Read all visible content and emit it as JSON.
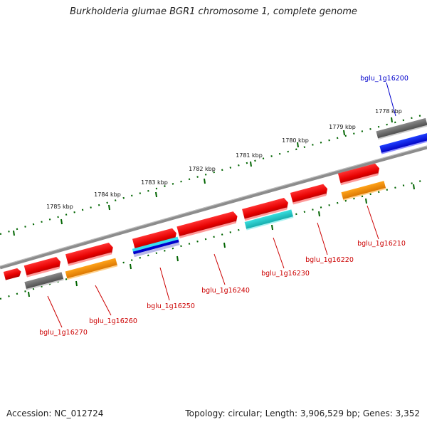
{
  "title": "Burkholderia glumae BGR1 chromosome 1, complete genome",
  "footer": {
    "accession": "Accession: NC_012724",
    "summary": "Topology: circular; Length: 3,906,529 bp; Genes: 3,352"
  },
  "colors": {
    "backbone": "#808080",
    "tick": "#006400",
    "label_red": "#cc0000",
    "label_blue": "#0000cc"
  },
  "scale_ticks": [
    {
      "label": "1778 kbp"
    },
    {
      "label": "1779 kbp"
    },
    {
      "label": "1780 kbp"
    },
    {
      "label": "1781 kbp"
    },
    {
      "label": "1782 kbp"
    },
    {
      "label": "1783 kbp"
    },
    {
      "label": "1784 kbp"
    },
    {
      "label": "1785 kbp"
    }
  ],
  "gene_labels": [
    {
      "text": "bglu_1g16200",
      "color": "#0000cc"
    },
    {
      "text": "bglu_1g16210",
      "color": "#cc0000"
    },
    {
      "text": "bglu_1g16220",
      "color": "#cc0000"
    },
    {
      "text": "bglu_1g16230",
      "color": "#cc0000"
    },
    {
      "text": "bglu_1g16240",
      "color": "#cc0000"
    },
    {
      "text": "bglu_1g16250",
      "color": "#cc0000"
    },
    {
      "text": "bglu_1g16260",
      "color": "#cc0000"
    },
    {
      "text": "bglu_1g16270",
      "color": "#cc0000"
    }
  ]
}
